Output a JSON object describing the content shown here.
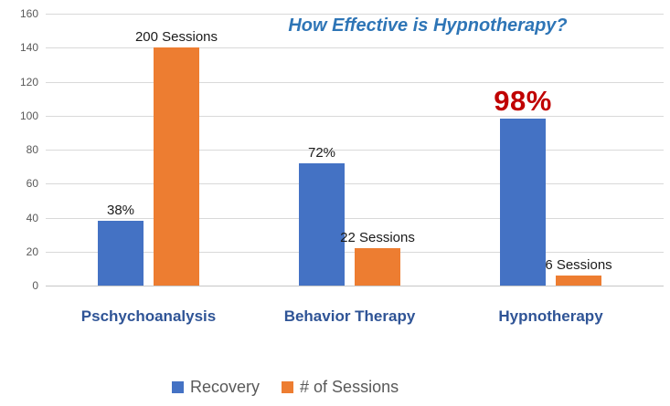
{
  "title": {
    "text": "How Effective is Hypnotherapy?",
    "color": "#2E75B6"
  },
  "chart_data": {
    "type": "bar",
    "categories": [
      "Pschychoanalysis",
      "Behavior Therapy",
      "Hypnotherapy"
    ],
    "series": [
      {
        "name": "Recovery",
        "color": "#4472C4",
        "values": [
          38,
          72,
          98
        ],
        "data_labels": [
          "38%",
          "72%",
          "98%"
        ]
      },
      {
        "name": "# of Sessions",
        "color": "#ED7D31",
        "values": [
          200,
          22,
          6
        ],
        "display_values": [
          140,
          22,
          6
        ],
        "data_labels": [
          "200 Sessions",
          "22 Sessions",
          "6 Sessions"
        ]
      }
    ],
    "xlabel": "",
    "ylabel": "",
    "ylim": [
      0,
      160
    ],
    "yticks": [
      0,
      20,
      40,
      60,
      80,
      100,
      120,
      140,
      160
    ],
    "grid": true,
    "legend_position": "bottom",
    "highlight_label": {
      "series_index": 0,
      "category_index": 2,
      "color": "#C00000",
      "font_size_px": 31
    },
    "colors": {
      "gridline": "#D9D9D9",
      "axis_tick_text": "#595959",
      "category_label_text": "#2F5496",
      "data_label_text": "#1A1A1A",
      "legend_text": "#595959",
      "background": "#FFFFFF"
    }
  }
}
